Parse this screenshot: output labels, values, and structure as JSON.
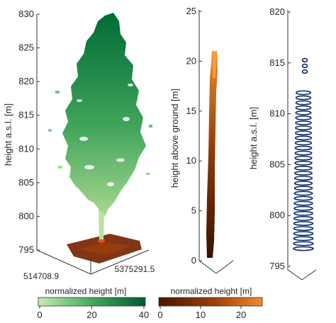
{
  "panels": {
    "tree_cloud": {
      "ylabel": "height a.s.l. [m]",
      "ticks": [
        "795",
        "800",
        "805",
        "810",
        "815",
        "820",
        "825",
        "830"
      ],
      "x_tick": "514708.9",
      "y_tick": "5375291.5"
    },
    "stem_cloud": {
      "ylabel": "height above ground [m]",
      "ticks": [
        "0",
        "5",
        "10",
        "15",
        "20",
        "25"
      ]
    },
    "stem_slices": {
      "ylabel": "height a.s.l. [m]",
      "ticks": [
        "795",
        "800",
        "805",
        "810",
        "815",
        "820"
      ]
    }
  },
  "colorbars": {
    "green": {
      "label": "normalized height [m]",
      "ticks": [
        "0",
        "20",
        "40"
      ],
      "color_low": "#c8ebb4",
      "color_high": "#005a32"
    },
    "orange": {
      "label": "normalized height [m]",
      "ticks": [
        "0",
        "10",
        "20"
      ],
      "color_low": "#4a1400",
      "color_high": "#f58c28"
    }
  },
  "colors": {
    "slice_marker": "#0b2a6b",
    "ground": "#7a2a08"
  }
}
